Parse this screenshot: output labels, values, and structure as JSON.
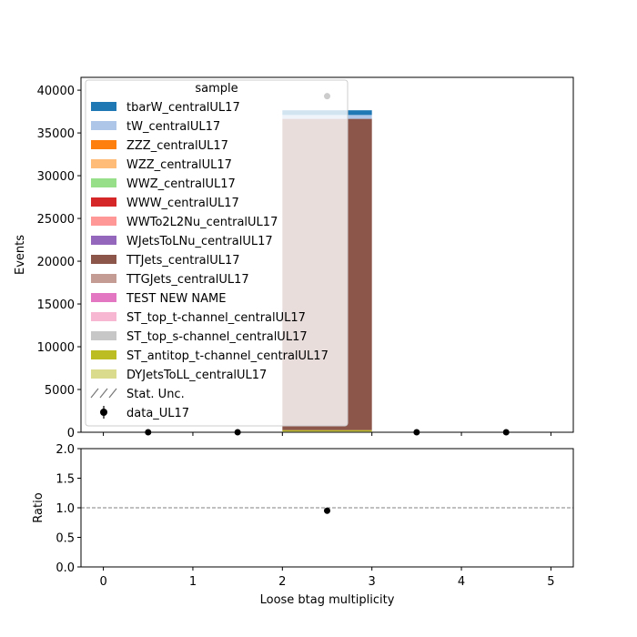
{
  "chart_data": [
    {
      "type": "bar",
      "stacked": true,
      "xlabel": "",
      "ylabel": "Events",
      "xlim": [
        -0.25,
        5.25
      ],
      "ylim": [
        0,
        41500
      ],
      "bin_edges": [
        0,
        1,
        2,
        3,
        4,
        5
      ],
      "x_ticks": [
        "0",
        "1",
        "2",
        "3",
        "4",
        "5"
      ],
      "y_ticks": [
        0,
        5000,
        10000,
        15000,
        20000,
        25000,
        30000,
        35000,
        40000
      ],
      "y_tick_labels": [
        "0",
        "5000",
        "10000",
        "15000",
        "20000",
        "25000",
        "30000",
        "35000",
        "40000"
      ],
      "legend": {
        "title": "sample",
        "placement": "upper-left",
        "entries": [
          {
            "label": "tbarW_centralUL17",
            "color": "#1f77b4",
            "kind": "patch"
          },
          {
            "label": "tW_centralUL17",
            "color": "#aec7e8",
            "kind": "patch"
          },
          {
            "label": "ZZZ_centralUL17",
            "color": "#ff7f0e",
            "kind": "patch"
          },
          {
            "label": "WZZ_centralUL17",
            "color": "#ffbb78",
            "kind": "patch"
          },
          {
            "label": "WWZ_centralUL17",
            "color": "#98df8a",
            "kind": "patch"
          },
          {
            "label": "WWW_centralUL17",
            "color": "#d62728",
            "kind": "patch"
          },
          {
            "label": "WWTo2L2Nu_centralUL17",
            "color": "#ff9896",
            "kind": "patch"
          },
          {
            "label": "WJetsToLNu_centralUL17",
            "color": "#9467bd",
            "kind": "patch"
          },
          {
            "label": "TTJets_centralUL17",
            "color": "#8c564b",
            "kind": "patch"
          },
          {
            "label": "TTGJets_centralUL17",
            "color": "#c49c94",
            "kind": "patch"
          },
          {
            "label": "TEST NEW NAME",
            "color": "#e377c2",
            "kind": "patch"
          },
          {
            "label": "ST_top_t-channel_centralUL17",
            "color": "#f7b6d2",
            "kind": "patch"
          },
          {
            "label": "ST_top_s-channel_centralUL17",
            "color": "#c7c7c7",
            "kind": "patch"
          },
          {
            "label": "ST_antitop_t-channel_centralUL17",
            "color": "#bcbd22",
            "kind": "patch"
          },
          {
            "label": "DYJetsToLL_centralUL17",
            "color": "#dbdb8d",
            "kind": "patch"
          },
          {
            "label": "Stat. Unc.",
            "color": "#777777",
            "kind": "hatch"
          },
          {
            "label": "data_UL17",
            "color": "#000000",
            "kind": "marker"
          }
        ]
      },
      "series": [
        {
          "name": "DYJetsToLL_centralUL17",
          "color": "#dbdb8d",
          "values": [
            0,
            0,
            100,
            0,
            0
          ]
        },
        {
          "name": "ST_antitop_t-channel_centralUL17",
          "color": "#bcbd22",
          "values": [
            0,
            0,
            150,
            0,
            0
          ]
        },
        {
          "name": "TTJets_centralUL17",
          "color": "#8c564b",
          "values": [
            0,
            0,
            36400,
            0,
            0
          ]
        },
        {
          "name": "tW_centralUL17",
          "color": "#aec7e8",
          "values": [
            0,
            0,
            450,
            0,
            0
          ]
        },
        {
          "name": "tbarW_centralUL17",
          "color": "#1f77b4",
          "values": [
            0,
            0,
            550,
            0,
            0
          ]
        }
      ],
      "data_points": {
        "name": "data_UL17",
        "x": [
          0.5,
          1.5,
          2.5,
          3.5,
          4.5
        ],
        "y": [
          0,
          0,
          39300,
          0,
          0
        ]
      }
    },
    {
      "type": "scatter",
      "xlabel": "Loose btag multiplicity",
      "ylabel": "Ratio",
      "xlim": [
        -0.25,
        5.25
      ],
      "ylim": [
        0,
        2
      ],
      "x_ticks": [
        "0",
        "1",
        "2",
        "3",
        "4",
        "5"
      ],
      "y_ticks": [
        0,
        0.5,
        1,
        1.5,
        2
      ],
      "y_tick_labels": [
        "0.0",
        "0.5",
        "1.0",
        "1.5",
        "2.0"
      ],
      "reference_line": 1.0,
      "points": {
        "x": [
          2.5
        ],
        "y": [
          0.95
        ]
      }
    }
  ]
}
